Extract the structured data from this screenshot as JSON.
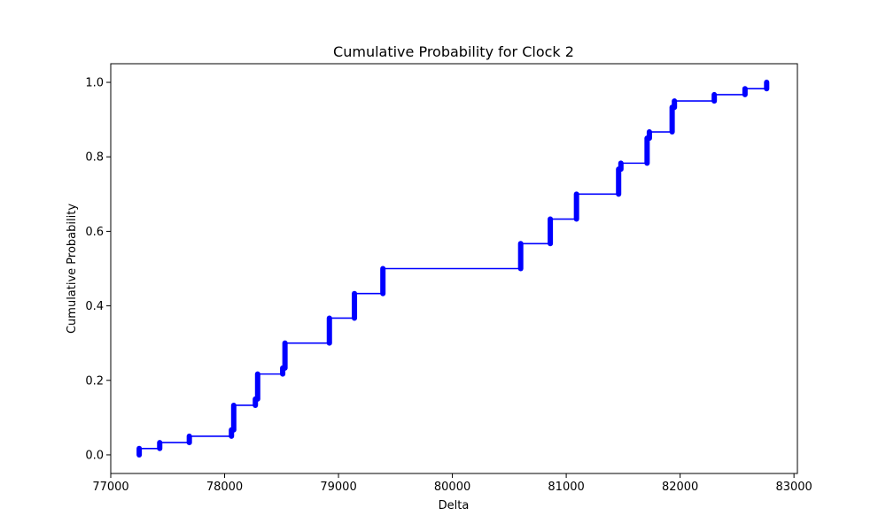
{
  "chart_data": {
    "type": "line",
    "title": "Cumulative Probability for Clock 2",
    "xlabel": "Delta",
    "ylabel": "Cumulative Probability",
    "xlim": [
      77000,
      83030
    ],
    "ylim": [
      -0.05,
      1.05
    ],
    "xticks": [
      77000,
      78000,
      79000,
      80000,
      81000,
      82000,
      83000
    ],
    "xtick_labels": [
      "77000",
      "78000",
      "79000",
      "80000",
      "81000",
      "82000",
      "83000"
    ],
    "yticks": [
      0.0,
      0.2,
      0.4,
      0.6,
      0.8,
      1.0
    ],
    "ytick_labels": [
      "0.0",
      "0.2",
      "0.4",
      "0.6",
      "0.8",
      "1.0"
    ],
    "grid": false,
    "color": "#0000ff",
    "series": [
      {
        "x": [
          77250,
          77430,
          77690,
          78060,
          78080,
          78270,
          78290,
          78510,
          78530,
          78920,
          79140,
          79390,
          80600,
          80860,
          81090,
          81460,
          81480,
          81710,
          81730,
          81930,
          81950,
          82300,
          82570,
          82760
        ],
        "y_low": [
          0.0,
          0.017,
          0.033,
          0.05,
          0.067,
          0.133,
          0.15,
          0.217,
          0.233,
          0.3,
          0.367,
          0.433,
          0.5,
          0.567,
          0.633,
          0.7,
          0.767,
          0.783,
          0.85,
          0.867,
          0.933,
          0.95,
          0.967,
          0.983
        ],
        "y_high": [
          0.017,
          0.033,
          0.05,
          0.067,
          0.133,
          0.15,
          0.217,
          0.233,
          0.3,
          0.367,
          0.433,
          0.5,
          0.567,
          0.633,
          0.7,
          0.767,
          0.783,
          0.85,
          0.867,
          0.933,
          0.95,
          0.967,
          0.983,
          1.0
        ]
      }
    ]
  }
}
